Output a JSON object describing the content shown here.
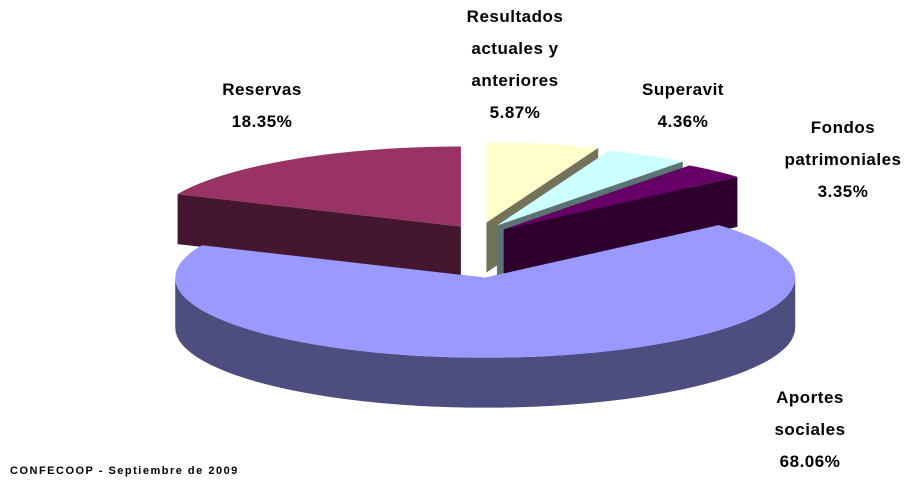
{
  "chart_data": {
    "type": "pie",
    "categories": [
      "Resultados actuales y anteriores",
      "Superavit",
      "Fondos patrimoniales",
      "Aportes sociales",
      "Reservas"
    ],
    "values": [
      5.87,
      4.36,
      3.35,
      68.06,
      18.35
    ],
    "value_labels": [
      "5.87%",
      "4.36%",
      "3.35%",
      "68.06%",
      "18.35%"
    ],
    "colors": [
      "#FFFFCC",
      "#CCFFFF",
      "#660066",
      "#9999FF",
      "#993366"
    ],
    "source": "CONFECOOP - Septiembre de 2009"
  }
}
